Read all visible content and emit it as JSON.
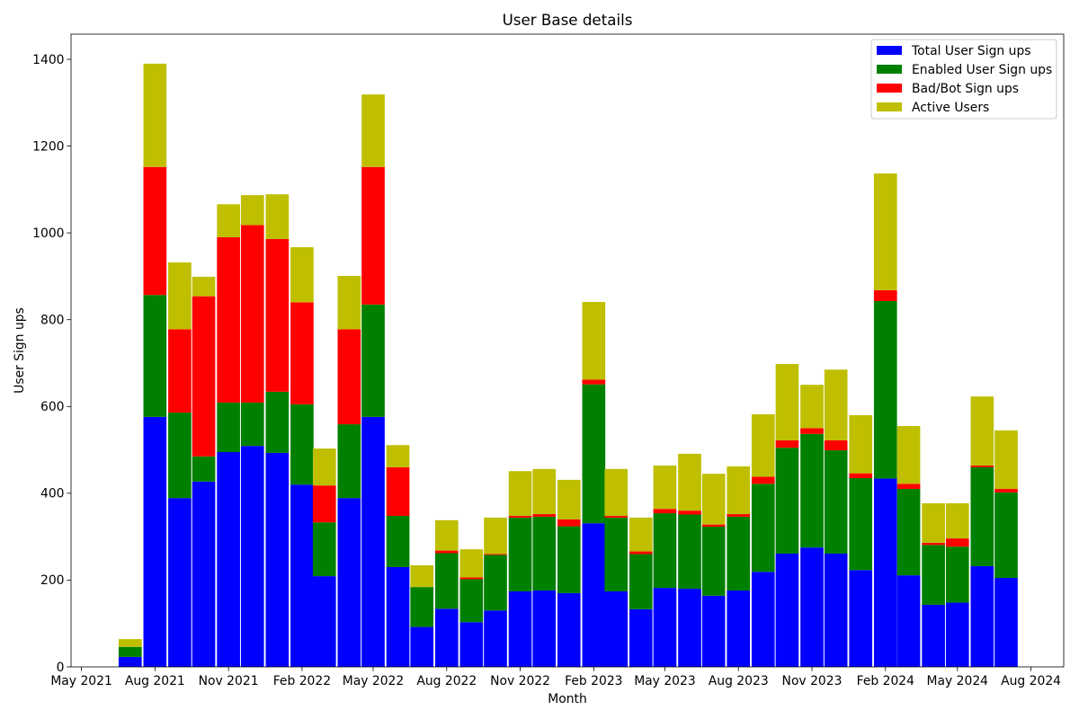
{
  "chart_data": {
    "type": "bar",
    "stacked": true,
    "title": "User Base details",
    "xlabel": "Month",
    "ylabel": "User Sign ups",
    "xlim": [
      "2021-04-18",
      "2024-09-11"
    ],
    "ylim": [
      0,
      1458
    ],
    "xticks": [
      "May 2021",
      "Aug 2021",
      "Nov 2021",
      "Feb 2022",
      "May 2022",
      "Aug 2022",
      "Nov 2022",
      "Feb 2023",
      "May 2023",
      "Aug 2023",
      "Nov 2023",
      "Feb 2024",
      "May 2024",
      "Aug 2024"
    ],
    "yticks": [
      0,
      200,
      400,
      600,
      800,
      1000,
      1200,
      1400
    ],
    "grid": false,
    "legend": "top-right",
    "x": [
      "2021-07-01",
      "2021-08-01",
      "2021-09-01",
      "2021-10-01",
      "2021-11-01",
      "2021-12-01",
      "2022-01-01",
      "2022-02-01",
      "2022-03-01",
      "2022-04-01",
      "2022-05-01",
      "2022-06-01",
      "2022-07-01",
      "2022-08-01",
      "2022-09-01",
      "2022-10-01",
      "2022-11-01",
      "2022-12-01",
      "2023-01-01",
      "2023-02-01",
      "2023-03-01",
      "2023-04-01",
      "2023-05-01",
      "2023-06-01",
      "2023-07-01",
      "2023-08-01",
      "2023-09-01",
      "2023-10-01",
      "2023-11-01",
      "2023-12-01",
      "2024-01-01",
      "2024-02-01",
      "2024-03-01",
      "2024-04-01",
      "2024-05-01",
      "2024-06-01",
      "2024-07-01"
    ],
    "series": [
      {
        "name": "Total User Sign ups",
        "color": "#0000ff",
        "values": [
          23,
          576,
          389,
          427,
          495,
          509,
          493,
          420,
          209,
          389,
          576,
          230,
          92,
          134,
          103,
          130,
          174,
          176,
          170,
          331,
          174,
          133,
          182,
          180,
          164,
          176,
          219,
          261,
          275,
          261,
          223,
          434,
          211,
          143,
          148,
          232,
          205
        ]
      },
      {
        "name": "Enabled User Sign ups",
        "color": "#008000",
        "values": [
          23,
          281,
          197,
          58,
          114,
          100,
          141,
          185,
          124,
          170,
          259,
          118,
          92,
          128,
          99,
          128,
          170,
          170,
          154,
          320,
          170,
          127,
          172,
          171,
          159,
          170,
          203,
          244,
          262,
          238,
          212,
          409,
          199,
          138,
          129,
          228,
          197
        ]
      },
      {
        "name": "Bad/Bot Sign ups",
        "color": "#ff0000",
        "values": [
          0,
          295,
          192,
          369,
          381,
          409,
          352,
          235,
          85,
          219,
          317,
          112,
          0,
          6,
          4,
          2,
          4,
          6,
          16,
          11,
          4,
          6,
          10,
          9,
          5,
          6,
          16,
          17,
          13,
          23,
          11,
          25,
          12,
          5,
          19,
          4,
          8
        ]
      },
      {
        "name": "Active Users",
        "color": "#bfbf00",
        "values": [
          18,
          238,
          154,
          45,
          76,
          69,
          103,
          127,
          85,
          123,
          167,
          51,
          50,
          70,
          65,
          84,
          103,
          104,
          91,
          179,
          108,
          78,
          100,
          131,
          117,
          110,
          144,
          176,
          100,
          163,
          134,
          269,
          133,
          91,
          81,
          159,
          135
        ]
      }
    ]
  }
}
